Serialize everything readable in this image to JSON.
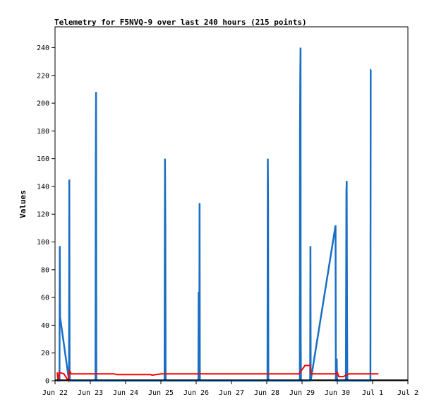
{
  "chart_data": {
    "type": "line",
    "title": "Telemetry for F5NVQ-9 over last 240 hours (215 points)",
    "xlabel": "",
    "ylabel": "Values",
    "ylim": [
      0,
      255
    ],
    "xlim": [
      0,
      240
    ],
    "grid": false,
    "x_ticks": [
      {
        "label": "Jun 22",
        "h": 0
      },
      {
        "label": "Jun 23",
        "h": 24
      },
      {
        "label": "Jun 24",
        "h": 48
      },
      {
        "label": "Jun 25",
        "h": 72
      },
      {
        "label": "Jun 26",
        "h": 96
      },
      {
        "label": "Jun 27",
        "h": 120
      },
      {
        "label": "Jun 28",
        "h": 144
      },
      {
        "label": "Jun 29",
        "h": 168
      },
      {
        "label": "Jun 30",
        "h": 192
      },
      {
        "label": "Jul 1",
        "h": 216
      },
      {
        "label": "Jul 2",
        "h": 240
      }
    ],
    "y_ticks": [
      0,
      20,
      40,
      60,
      80,
      100,
      120,
      140,
      160,
      180,
      200,
      220,
      240
    ],
    "series": [
      {
        "color": "#1a6fc4",
        "x": [
          1.5,
          3.0,
          3.2,
          3.4,
          9.5,
          9.7,
          9.9,
          10.1,
          27.5,
          27.7,
          27.9,
          28.1,
          74.5,
          74.6,
          74.8,
          75.0,
          75.2,
          97.5,
          97.7,
          97.9,
          98.1,
          98.3,
          98.5,
          144.5,
          144.7,
          144.9,
          145.1,
          166.5,
          166.6,
          166.8,
          167.0,
          167.1,
          167.3,
          173.5,
          173.7,
          173.9,
          190.8,
          191.0,
          191.2,
          191.6,
          191.8,
          197.8,
          198.0,
          198.2,
          198.4,
          198.6,
          198.8,
          214.5,
          214.7,
          214.9
        ],
        "y": [
          0,
          0,
          97,
          46,
          0,
          145,
          8,
          0,
          0,
          160,
          208,
          0,
          0,
          80,
          160,
          112,
          0,
          0,
          64,
          48,
          0,
          128,
          0,
          0,
          160,
          128,
          0,
          0,
          180,
          220,
          240,
          32,
          0,
          0,
          97,
          0,
          112,
          0,
          0,
          16,
          0,
          0,
          64,
          136,
          144,
          48,
          0,
          0,
          224,
          224
        ]
      },
      {
        "color": "#ff0000",
        "x": [
          1.5,
          2.0,
          2.3,
          2.8,
          6.0,
          9.0,
          9.5,
          10.0,
          11.0,
          40.0,
          42.0,
          65.0,
          66.0,
          72.0,
          120.0,
          166.0,
          170.0,
          172.0,
          173.5,
          174.0,
          176.0,
          190.0,
          191.0,
          192.0,
          193.0,
          196.0,
          200.0,
          220.0
        ],
        "y": [
          6,
          1,
          0,
          6,
          5,
          0,
          6,
          7,
          5,
          5,
          4.5,
          4.5,
          4,
          5,
          5,
          5,
          11,
          11,
          11,
          5,
          5,
          5,
          5,
          6,
          3,
          3,
          5,
          5
        ]
      }
    ]
  }
}
